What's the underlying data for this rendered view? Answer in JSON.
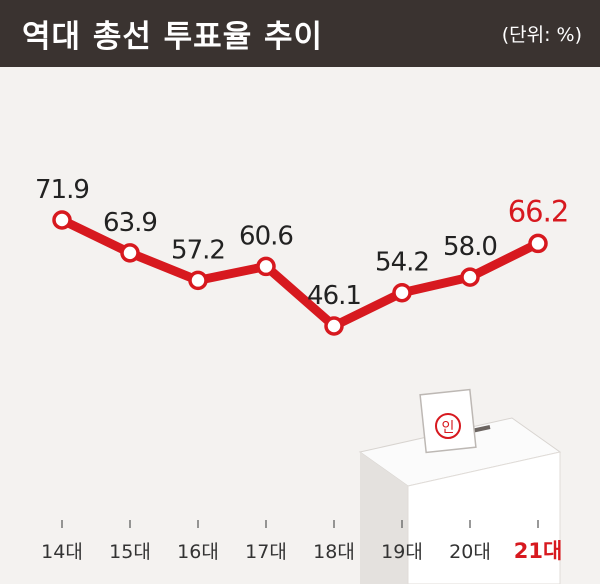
{
  "header": {
    "title": "역대 총선 투표율 추이",
    "unit": "(단위: %)"
  },
  "colors": {
    "header_bg": "#3a3330",
    "line": "#d7191f",
    "highlight": "#d7191f",
    "marker_fill": "#ffffff",
    "label_text": "#222222"
  },
  "chart_data": {
    "type": "line",
    "title": "역대 총선 투표율 추이",
    "unit": "(단위: %)",
    "categories": [
      "14대",
      "15대",
      "16대",
      "17대",
      "18대",
      "19대",
      "20대",
      "21대"
    ],
    "series": [
      {
        "values": [
          71.9,
          63.9,
          57.2,
          60.6,
          46.1,
          54.2,
          58.0,
          66.2
        ]
      }
    ],
    "value_labels": [
      "71.9",
      "63.9",
      "57.2",
      "60.6",
      "46.1",
      "54.2",
      "58.0",
      "66.2"
    ],
    "highlight_index": 7,
    "grid": false,
    "legend": "none"
  },
  "decoration": {
    "illustration": "ballot-box-icon"
  }
}
